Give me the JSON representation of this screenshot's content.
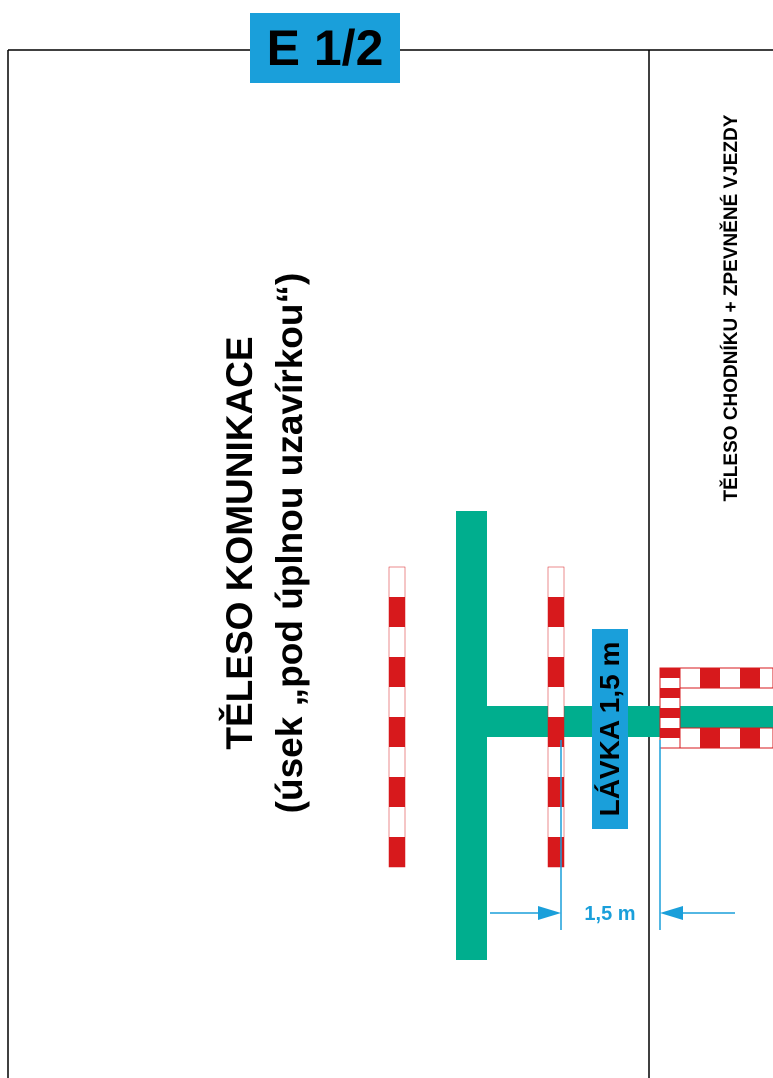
{
  "sheet_label": "E 1/2",
  "road_body": {
    "line1": "TĚLESO KOMUNIKACE",
    "line2": "(úsek „pod úplnou uzavírkou“)"
  },
  "sidewalk_body": "TĚLESO CHODNÍKU + ZPEVNĚNÉ VJEZDY",
  "footbridge_label": "LÁVKA 1,5 m",
  "dimension_label": "1,5 m",
  "colors": {
    "label_bg": "#1a9fda",
    "footbridge_green": "#00ae8e",
    "barrier_red": "#d7191c",
    "barrier_white": "#ffffff",
    "dimension_blue": "#1a9fda",
    "line_black": "#000000"
  }
}
